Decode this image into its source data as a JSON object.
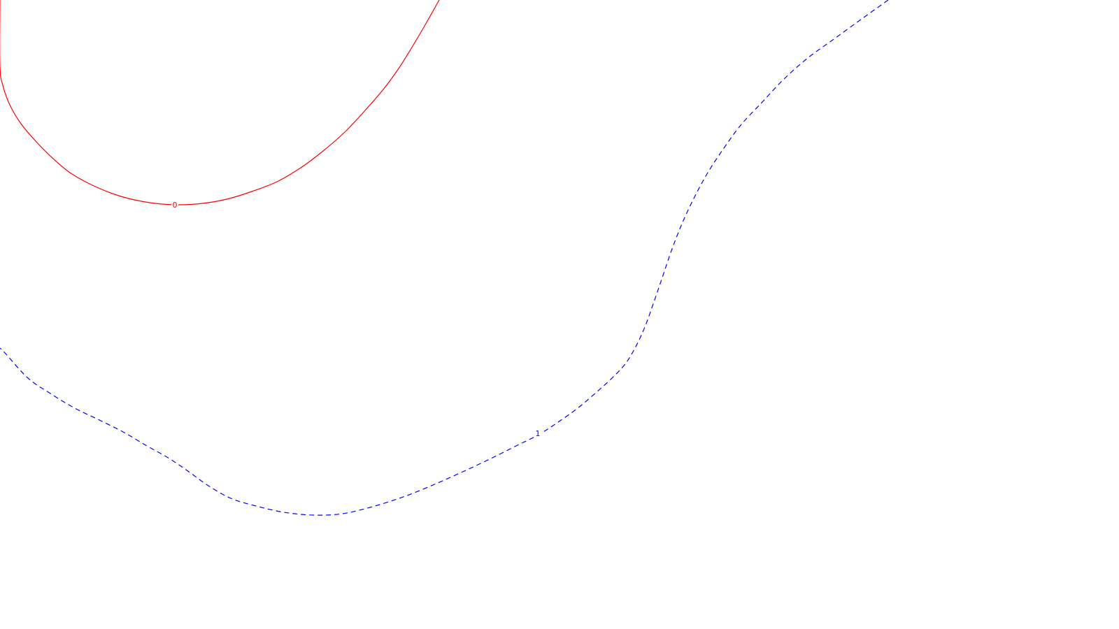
{
  "chart_data": {
    "type": "line",
    "grid": false,
    "legend": "none",
    "series": [
      {
        "level_label": "0",
        "color": "#ff0000",
        "style": "solid",
        "x": [
          628,
          610,
          590,
          570,
          548,
          522,
          494,
          462,
          430,
          396,
          360,
          324,
          290,
          256,
          222,
          188,
          158,
          128,
          100,
          76,
          52,
          30,
          14,
          4,
          0,
          0
        ],
        "y": [
          0,
          32,
          66,
          98,
          128,
          158,
          188,
          216,
          240,
          260,
          274,
          285,
          291,
          293,
          291,
          285,
          276,
          263,
          247,
          227,
          203,
          177,
          150,
          122,
          95,
          0
        ]
      },
      {
        "level_label": "1",
        "color": "#0000ff",
        "style": "dashed",
        "x": [
          1270,
          1235,
          1195,
          1155,
          1120,
          1090,
          1060,
          1035,
          1012,
          993,
          976,
          961,
          948,
          935,
          922,
          908,
          893,
          874,
          852,
          826,
          798,
          770,
          738,
          702,
          666,
          626,
          582,
          536,
          490,
          448,
          406,
          366,
          330,
          298,
          270,
          242,
          210,
          176,
          140,
          105,
          72,
          40,
          8,
          0
        ],
        "y": [
          0,
          25,
          54,
          83,
          114,
          146,
          178,
          212,
          247,
          282,
          318,
          356,
          394,
          432,
          468,
          498,
          522,
          542,
          562,
          584,
          604,
          622,
          638,
          656,
          673,
          691,
          709,
          724,
          735,
          737,
          733,
          724,
          713,
          695,
          675,
          656,
          638,
          618,
          600,
          583,
          563,
          541,
          506,
          498
        ]
      }
    ],
    "labels": [
      {
        "text": "0",
        "color": "#ff0000",
        "x": 250,
        "y": 293
      },
      {
        "text": "1",
        "color": "#0000ff",
        "x": 769,
        "y": 620
      }
    ]
  }
}
